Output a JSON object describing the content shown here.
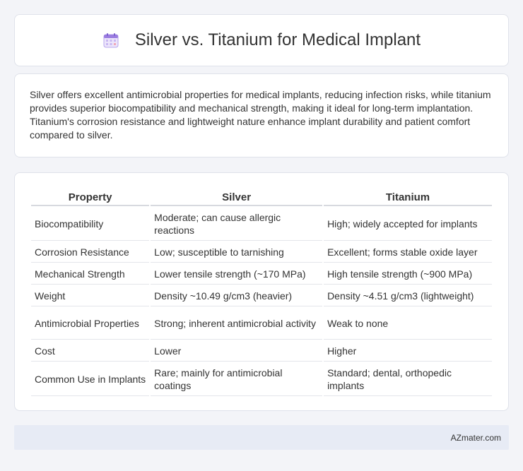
{
  "header": {
    "title": "Silver vs. Titanium for Medical Implant",
    "icon": "calendar-icon"
  },
  "summary": {
    "text": "Silver offers excellent antimicrobial properties for medical implants, reducing infection risks, while titanium provides superior biocompatibility and mechanical strength, making it ideal for long-term implantation. Titanium's corrosion resistance and lightweight nature enhance implant durability and patient comfort compared to silver."
  },
  "table": {
    "headers": [
      "Property",
      "Silver",
      "Titanium"
    ],
    "rows": [
      [
        "Biocompatibility",
        "Moderate; can cause allergic reactions",
        "High; widely accepted for implants"
      ],
      [
        "Corrosion Resistance",
        "Low; susceptible to tarnishing",
        "Excellent; forms stable oxide layer"
      ],
      [
        "Mechanical Strength",
        "Lower tensile strength (~170 MPa)",
        "High tensile strength (~900 MPa)"
      ],
      [
        "Weight",
        "Density ~10.49 g/cm3 (heavier)",
        "Density ~4.51 g/cm3 (lightweight)"
      ],
      [
        "Antimicrobial Properties",
        "Strong; inherent antimicrobial activity",
        "Weak to none"
      ],
      [
        "Cost",
        "Lower",
        "Higher"
      ],
      [
        "Common Use in Implants",
        "Rare; mainly for antimicrobial coatings",
        "Standard; dental, orthopedic implants"
      ]
    ]
  },
  "footer": {
    "text": "AZmater.com"
  },
  "colors": {
    "background": "#f3f4f8",
    "card": "#ffffff",
    "footer_bg": "#e7ebf5",
    "icon_accent": "#9b7de0"
  }
}
